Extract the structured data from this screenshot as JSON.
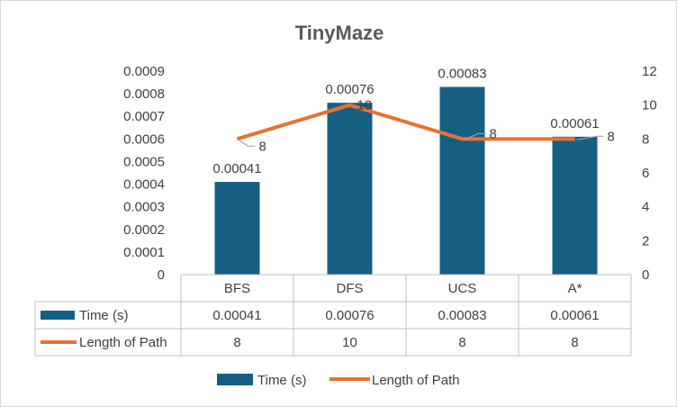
{
  "chart_data": {
    "type": "bar",
    "title": "TinyMaze",
    "categories": [
      "BFS",
      "DFS",
      "UCS",
      "A*"
    ],
    "series": [
      {
        "name": "Time (s)",
        "type": "bar",
        "axis": "left",
        "values": [
          0.00041,
          0.00076,
          0.00083,
          0.00061
        ],
        "value_labels": [
          "0.00041",
          "0.00076",
          "0.00083",
          "0.00061"
        ],
        "color": "#156082"
      },
      {
        "name": "Length of Path",
        "type": "line",
        "axis": "right",
        "values": [
          8,
          10,
          8,
          8
        ],
        "value_labels": [
          "8",
          "10",
          "8",
          "8"
        ],
        "color": "#E97132"
      }
    ],
    "y_left": {
      "min": 0,
      "max": 0.0009,
      "ticks": [
        "0",
        "0.0001",
        "0.0002",
        "0.0003",
        "0.0004",
        "0.0005",
        "0.0006",
        "0.0007",
        "0.0008",
        "0.0009"
      ]
    },
    "y_right": {
      "min": 0,
      "max": 12,
      "ticks": [
        "0",
        "2",
        "4",
        "6",
        "8",
        "10",
        "12"
      ]
    },
    "grid": false,
    "data_table": true,
    "legend": "bottom"
  }
}
